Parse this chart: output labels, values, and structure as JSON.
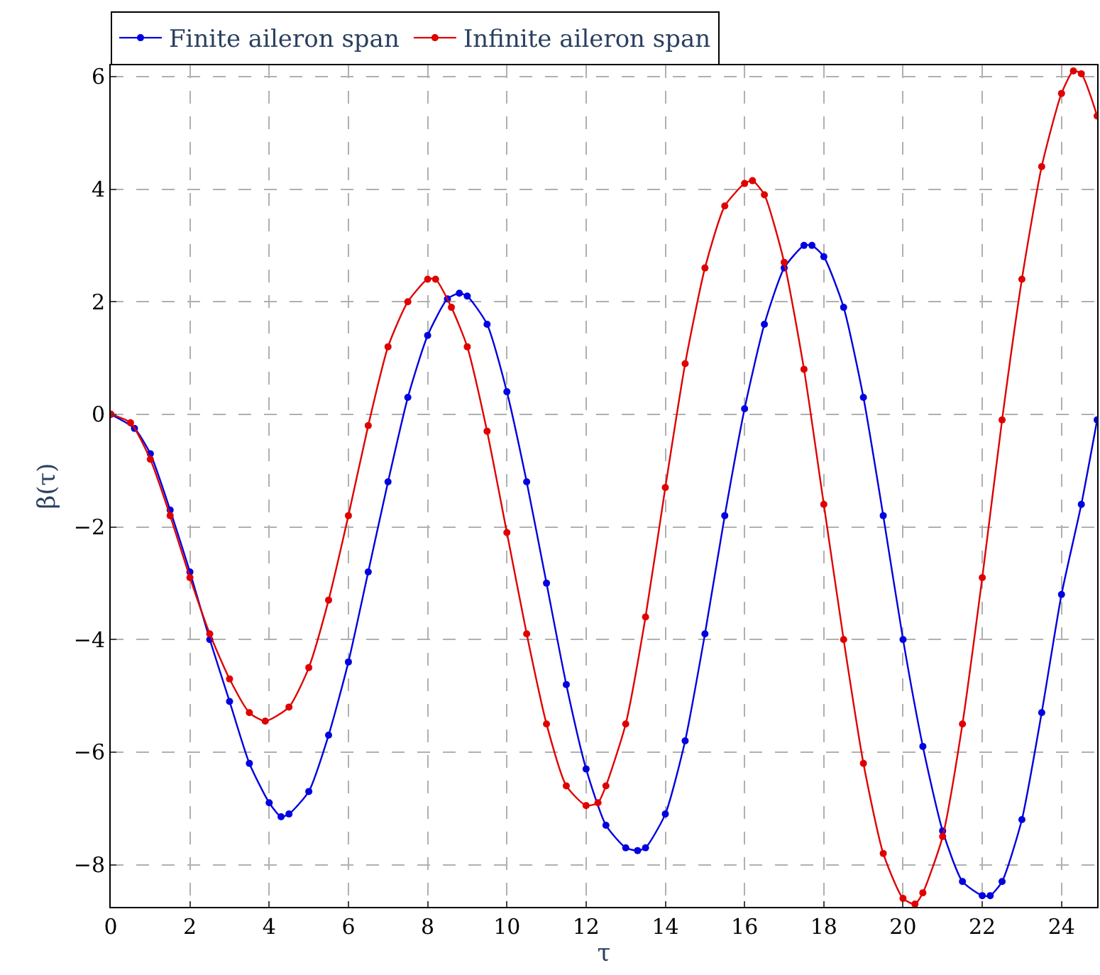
{
  "chart_data": {
    "type": "line",
    "xlabel": "τ",
    "ylabel": "β(τ)",
    "xlim": [
      0,
      24.9
    ],
    "ylim": [
      -8.75,
      6.2
    ],
    "xticks": [
      0,
      2,
      4,
      6,
      8,
      10,
      12,
      14,
      16,
      18,
      20,
      22,
      24
    ],
    "yticks": [
      {
        "value": -8,
        "label": "−8"
      },
      {
        "value": -6,
        "label": "−6"
      },
      {
        "value": -4,
        "label": "−4"
      },
      {
        "value": -2,
        "label": "−2"
      },
      0,
      2,
      4,
      6
    ],
    "grid": true,
    "legend": "top left",
    "marker": "circle",
    "line_style": "solid",
    "series": [
      {
        "name": "Finite aileron span",
        "color": "#0000e0",
        "x": [
          0,
          0.6,
          1,
          1.5,
          2,
          2.5,
          3,
          3.5,
          4,
          4.3,
          4.5,
          5,
          5.5,
          6,
          6.5,
          7,
          7.5,
          8,
          8.5,
          8.8,
          9,
          9.5,
          10,
          10.5,
          11,
          11.5,
          12,
          12.5,
          13,
          13.3,
          13.5,
          14,
          14.5,
          15,
          15.5,
          16,
          16.5,
          17,
          17.5,
          17.7,
          18,
          18.5,
          19,
          19.5,
          20,
          20.5,
          21,
          21.5,
          22,
          22.2,
          22.5,
          23,
          23.5,
          24,
          24.5,
          24.9
        ],
        "values": [
          0,
          -0.25,
          -0.7,
          -1.7,
          -2.8,
          -4.0,
          -5.1,
          -6.2,
          -6.9,
          -7.15,
          -7.1,
          -6.7,
          -5.7,
          -4.4,
          -2.8,
          -1.2,
          0.3,
          1.4,
          2.05,
          2.15,
          2.1,
          1.6,
          0.4,
          -1.2,
          -3.0,
          -4.8,
          -6.3,
          -7.3,
          -7.7,
          -7.75,
          -7.7,
          -7.1,
          -5.8,
          -3.9,
          -1.8,
          0.1,
          1.6,
          2.6,
          3.0,
          3.0,
          2.8,
          1.9,
          0.3,
          -1.8,
          -4.0,
          -5.9,
          -7.4,
          -8.3,
          -8.55,
          -8.55,
          -8.3,
          -7.2,
          -5.3,
          -3.2,
          -1.6,
          -0.1
        ]
      },
      {
        "name": "Infinite aileron span",
        "color": "#e00000",
        "x": [
          0,
          0.5,
          1,
          1.5,
          2,
          2.5,
          3,
          3.5,
          3.9,
          4.5,
          5,
          5.5,
          6,
          6.5,
          7,
          7.5,
          8,
          8.2,
          8.6,
          9,
          9.5,
          10,
          10.5,
          11,
          11.5,
          12,
          12.3,
          12.5,
          13,
          13.5,
          14,
          14.5,
          15,
          15.5,
          16,
          16.2,
          16.5,
          17,
          17.5,
          18,
          18.5,
          19,
          19.5,
          20,
          20.3,
          20.5,
          21,
          21.5,
          22,
          22.5,
          23,
          23.5,
          24,
          24.3,
          24.5,
          24.9
        ],
        "values": [
          0,
          -0.15,
          -0.8,
          -1.8,
          -2.9,
          -3.9,
          -4.7,
          -5.3,
          -5.45,
          -5.2,
          -4.5,
          -3.3,
          -1.8,
          -0.2,
          1.2,
          2.0,
          2.4,
          2.4,
          1.9,
          1.2,
          -0.3,
          -2.1,
          -3.9,
          -5.5,
          -6.6,
          -6.95,
          -6.9,
          -6.6,
          -5.5,
          -3.6,
          -1.3,
          0.9,
          2.6,
          3.7,
          4.1,
          4.15,
          3.9,
          2.7,
          0.8,
          -1.6,
          -4.0,
          -6.2,
          -7.8,
          -8.6,
          -8.7,
          -8.5,
          -7.5,
          -5.5,
          -2.9,
          -0.1,
          2.4,
          4.4,
          5.7,
          6.1,
          6.05,
          5.3
        ]
      }
    ]
  }
}
